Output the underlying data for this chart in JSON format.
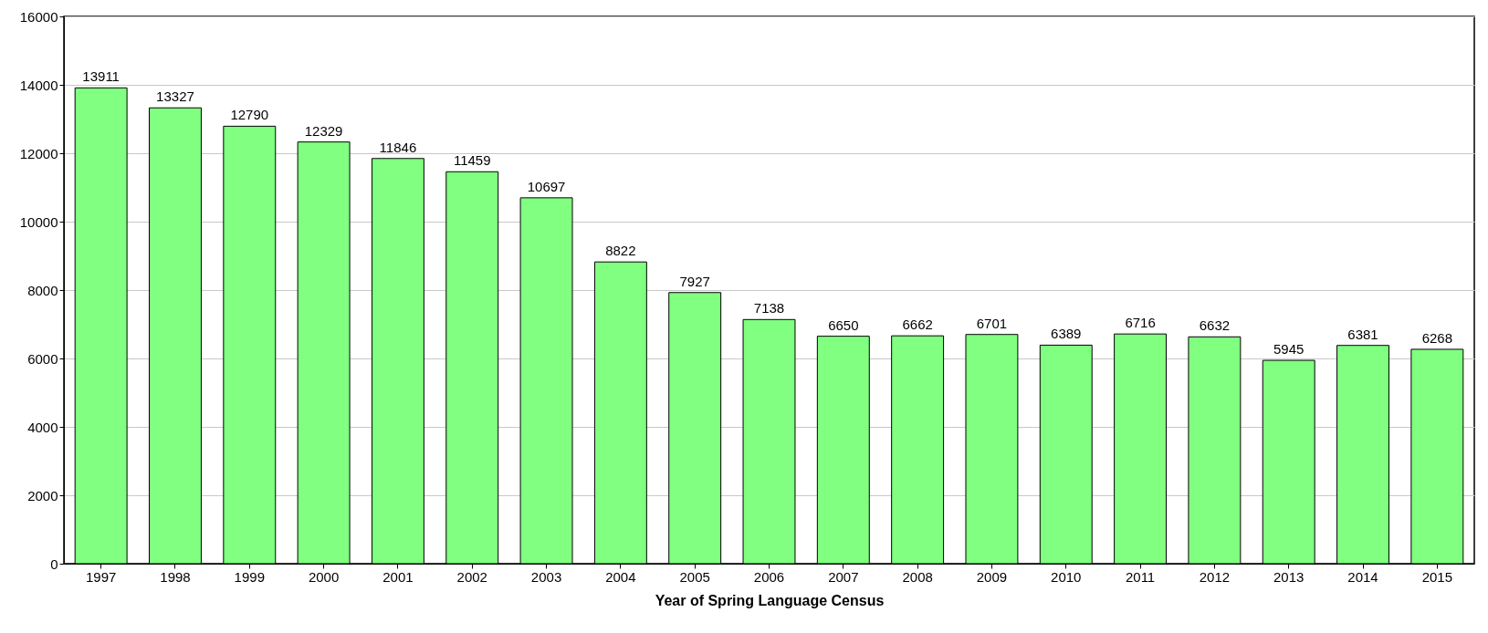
{
  "chart_data": {
    "type": "bar",
    "xlabel": "Year of Spring Language Census",
    "categories": [
      "1997",
      "1998",
      "1999",
      "2000",
      "2001",
      "2002",
      "2003",
      "2004",
      "2005",
      "2006",
      "2007",
      "2008",
      "2009",
      "2010",
      "2011",
      "2012",
      "2013",
      "2014",
      "2015"
    ],
    "values": [
      13911,
      13327,
      12790,
      12329,
      11846,
      11459,
      10697,
      8822,
      7927,
      7138,
      6650,
      6662,
      6701,
      6389,
      6716,
      6632,
      5945,
      6381,
      6268
    ],
    "color": "#80ff80",
    "ylim": [
      0,
      16000
    ],
    "yticks": [
      0,
      2000,
      4000,
      6000,
      8000,
      10000,
      12000,
      14000,
      16000
    ],
    "grid": "y",
    "data_labels": true
  }
}
